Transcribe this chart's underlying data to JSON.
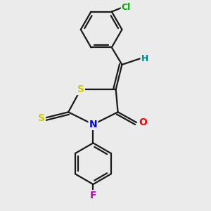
{
  "bg_color": "#ebebeb",
  "bond_color": "#1a1a1a",
  "bond_width": 1.6,
  "atom_labels": {
    "S1": {
      "text": "S",
      "color": "#cccc00",
      "fontsize": 10,
      "fontweight": "bold"
    },
    "N": {
      "text": "N",
      "color": "#0000ff",
      "fontsize": 10,
      "fontweight": "bold"
    },
    "O": {
      "text": "O",
      "color": "#ff0000",
      "fontsize": 10,
      "fontweight": "bold"
    },
    "S2": {
      "text": "S",
      "color": "#cccc00",
      "fontsize": 10,
      "fontweight": "bold"
    },
    "Cl": {
      "text": "Cl",
      "color": "#00aa00",
      "fontsize": 9,
      "fontweight": "bold"
    },
    "F": {
      "text": "F",
      "color": "#cc00cc",
      "fontsize": 10,
      "fontweight": "bold"
    },
    "H": {
      "text": "H",
      "color": "#008888",
      "fontsize": 9,
      "fontweight": "bold"
    }
  }
}
